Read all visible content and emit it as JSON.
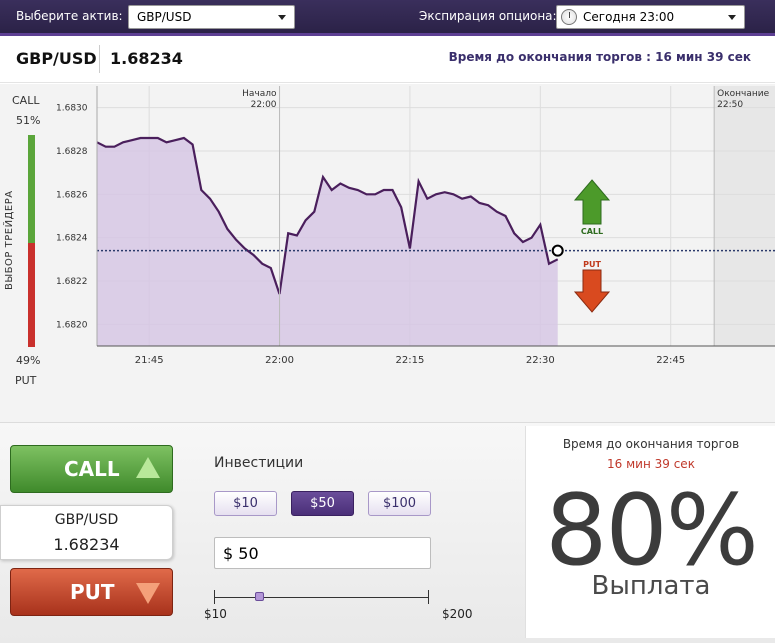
{
  "topbar": {
    "asset_label": "Выберите актив:",
    "asset_value": "GBP/USD",
    "expiry_label": "Экспирация опциона:",
    "expiry_value": "Сегодня 23:00"
  },
  "asset_header": {
    "name": "GBP/USD",
    "price": "1.68234",
    "time_left": "Время до окончания торгов : 16 мин 39 сек"
  },
  "trader_choice": {
    "label": "ВЫБОР ТРЕЙДЕРА",
    "call_label": "CALL",
    "call_pct": "51%",
    "put_label": "PUT",
    "put_pct": "49%",
    "call_fraction": 0.51
  },
  "chart_data": {
    "type": "area",
    "series": [
      {
        "x": [
          "21:39",
          "21:40",
          "21:41",
          "21:42",
          "21:43",
          "21:44",
          "21:45",
          "21:46",
          "21:47",
          "21:48",
          "21:49",
          "21:50",
          "21:51",
          "21:52",
          "21:53",
          "21:54",
          "21:55",
          "21:56",
          "21:57",
          "21:58",
          "21:59",
          "22:00",
          "22:01",
          "22:02",
          "22:03",
          "22:04",
          "22:05",
          "22:06",
          "22:07",
          "22:08",
          "22:09",
          "22:10",
          "22:11",
          "22:12",
          "22:13",
          "22:14",
          "22:15",
          "22:16",
          "22:17",
          "22:18",
          "22:19",
          "22:20",
          "22:21",
          "22:22",
          "22:23",
          "22:24",
          "22:25",
          "22:26",
          "22:27",
          "22:28",
          "22:29",
          "22:30",
          "22:31",
          "22:32"
        ],
        "y": [
          1.68284,
          1.68282,
          1.68282,
          1.68284,
          1.68285,
          1.68286,
          1.68286,
          1.68286,
          1.68284,
          1.68285,
          1.68286,
          1.68283,
          1.68262,
          1.68258,
          1.68252,
          1.68244,
          1.68239,
          1.68235,
          1.68232,
          1.68228,
          1.68226,
          1.68214,
          1.68242,
          1.68241,
          1.68248,
          1.68252,
          1.68268,
          1.68262,
          1.68265,
          1.68263,
          1.68262,
          1.6826,
          1.6826,
          1.68262,
          1.68262,
          1.68254,
          1.68235,
          1.68266,
          1.68258,
          1.6826,
          1.68261,
          1.6826,
          1.68258,
          1.68259,
          1.68256,
          1.68255,
          1.68252,
          1.6825,
          1.68242,
          1.68238,
          1.6824,
          1.68246,
          1.68228,
          1.6823
        ]
      }
    ],
    "x_ticks": [
      "21:45",
      "22:00",
      "22:15",
      "22:30",
      "22:45"
    ],
    "y_ticks": [
      "1.6820",
      "1.6822",
      "1.6824",
      "1.6826",
      "1.6828",
      "1.6830"
    ],
    "ylim": [
      1.6819,
      1.6831
    ],
    "current_value": 1.68234,
    "markers": [
      {
        "label_top": "Начало",
        "label_bottom": "22:00",
        "x": "22:00"
      },
      {
        "label_top": "Окончание",
        "label_bottom": "22:50",
        "x": "22:50"
      }
    ],
    "call_arrow_label": "CALL",
    "put_arrow_label": "PUT",
    "colors": {
      "line": "#4a1f5c",
      "fill": "#d6c7e4",
      "current": "#2b3a6b",
      "call": "#4c9a2a",
      "put": "#d94a1f"
    }
  },
  "trade": {
    "call_label": "CALL",
    "put_label": "PUT",
    "card_asset": "GBP/USD",
    "card_price": "1.68234"
  },
  "investment": {
    "title": "Инвестиции",
    "amounts": [
      "$10",
      "$50",
      "$100"
    ],
    "selected_index": 1,
    "input_value": "$ 50",
    "slider_min": "$10",
    "slider_max": "$200",
    "slider_value": 50
  },
  "payout": {
    "title": "Время до окончания торгов",
    "time": "16 мин 39 сек",
    "percent": "80%",
    "label": "Выплата"
  }
}
